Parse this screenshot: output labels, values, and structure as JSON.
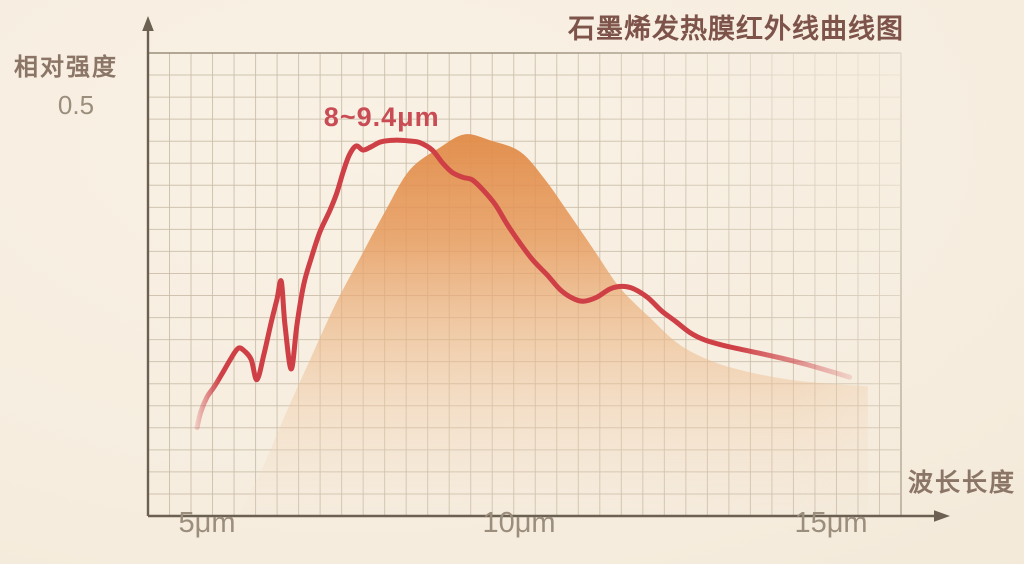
{
  "chart_data": {
    "type": "line",
    "title": "石墨烯发热膜红外线曲线图",
    "xlabel": "波长长度",
    "ylabel": "相对强度",
    "xticks": [
      {
        "label": "5μm",
        "value": 5
      },
      {
        "label": "10μm",
        "value": 10
      },
      {
        "label": "15μm",
        "value": 15
      }
    ],
    "yticks": [
      {
        "label": "0.5",
        "value": 0.5
      }
    ],
    "xlim": [
      4.05,
      16.1
    ],
    "ylim": [
      0,
      0.56
    ],
    "grid": true,
    "legend": "none",
    "annotation": {
      "text": "8~9.4μm",
      "x": 7.8,
      "y": 0.48
    },
    "series": [
      {
        "name": "ir-emission-envelope",
        "type": "area",
        "color": "#e08a46",
        "points": [
          [
            5.5,
            0.0
          ],
          [
            5.88,
            0.056
          ],
          [
            6.25,
            0.122
          ],
          [
            6.65,
            0.189
          ],
          [
            7.05,
            0.255
          ],
          [
            7.45,
            0.312
          ],
          [
            7.85,
            0.368
          ],
          [
            8.25,
            0.419
          ],
          [
            8.73,
            0.446
          ],
          [
            9.13,
            0.462
          ],
          [
            9.53,
            0.455
          ],
          [
            10.02,
            0.441
          ],
          [
            10.42,
            0.407
          ],
          [
            10.82,
            0.364
          ],
          [
            11.22,
            0.32
          ],
          [
            11.62,
            0.276
          ],
          [
            12.1,
            0.24
          ],
          [
            12.58,
            0.207
          ],
          [
            13.14,
            0.186
          ],
          [
            13.7,
            0.174
          ],
          [
            14.34,
            0.165
          ],
          [
            14.98,
            0.16
          ],
          [
            15.59,
            0.157
          ]
        ]
      },
      {
        "name": "graphene-ir-spectrum-curve",
        "type": "line",
        "color": "#ce3f46",
        "points": [
          [
            4.84,
            0.107
          ],
          [
            4.9,
            0.126
          ],
          [
            5.0,
            0.144
          ],
          [
            5.11,
            0.156
          ],
          [
            5.24,
            0.172
          ],
          [
            5.37,
            0.189
          ],
          [
            5.5,
            0.203
          ],
          [
            5.61,
            0.199
          ],
          [
            5.71,
            0.189
          ],
          [
            5.8,
            0.165
          ],
          [
            5.91,
            0.195
          ],
          [
            6.03,
            0.235
          ],
          [
            6.12,
            0.262
          ],
          [
            6.19,
            0.284
          ],
          [
            6.25,
            0.231
          ],
          [
            6.35,
            0.178
          ],
          [
            6.44,
            0.231
          ],
          [
            6.55,
            0.28
          ],
          [
            6.67,
            0.312
          ],
          [
            6.81,
            0.344
          ],
          [
            6.97,
            0.37
          ],
          [
            7.08,
            0.391
          ],
          [
            7.18,
            0.416
          ],
          [
            7.28,
            0.437
          ],
          [
            7.39,
            0.448
          ],
          [
            7.5,
            0.443
          ],
          [
            7.63,
            0.447
          ],
          [
            7.79,
            0.453
          ],
          [
            8.01,
            0.455
          ],
          [
            8.25,
            0.454
          ],
          [
            8.41,
            0.452
          ],
          [
            8.61,
            0.443
          ],
          [
            8.78,
            0.427
          ],
          [
            8.93,
            0.416
          ],
          [
            9.1,
            0.41
          ],
          [
            9.25,
            0.407
          ],
          [
            9.42,
            0.395
          ],
          [
            9.62,
            0.377
          ],
          [
            9.82,
            0.352
          ],
          [
            10.02,
            0.33
          ],
          [
            10.22,
            0.31
          ],
          [
            10.45,
            0.292
          ],
          [
            10.66,
            0.274
          ],
          [
            10.85,
            0.264
          ],
          [
            11.03,
            0.26
          ],
          [
            11.25,
            0.265
          ],
          [
            11.46,
            0.275
          ],
          [
            11.65,
            0.278
          ],
          [
            11.84,
            0.275
          ],
          [
            12.07,
            0.264
          ],
          [
            12.29,
            0.248
          ],
          [
            12.52,
            0.235
          ],
          [
            12.74,
            0.222
          ],
          [
            12.98,
            0.213
          ],
          [
            13.25,
            0.207
          ],
          [
            13.54,
            0.202
          ],
          [
            13.86,
            0.197
          ],
          [
            14.21,
            0.191
          ],
          [
            14.58,
            0.184
          ],
          [
            14.95,
            0.176
          ],
          [
            15.3,
            0.168
          ]
        ]
      }
    ],
    "colors": {
      "background": "#f7eee0",
      "grid": "#c9bca8",
      "grid_border": "#9a8d7a",
      "axis": "#6b6052",
      "curve": "#ce3f46",
      "area_top": "#e08a46",
      "title_text": "#7d534a",
      "label_text": "#8b7566",
      "tick_text": "#9c8e7d",
      "annotation_text": "#c94b54"
    }
  }
}
